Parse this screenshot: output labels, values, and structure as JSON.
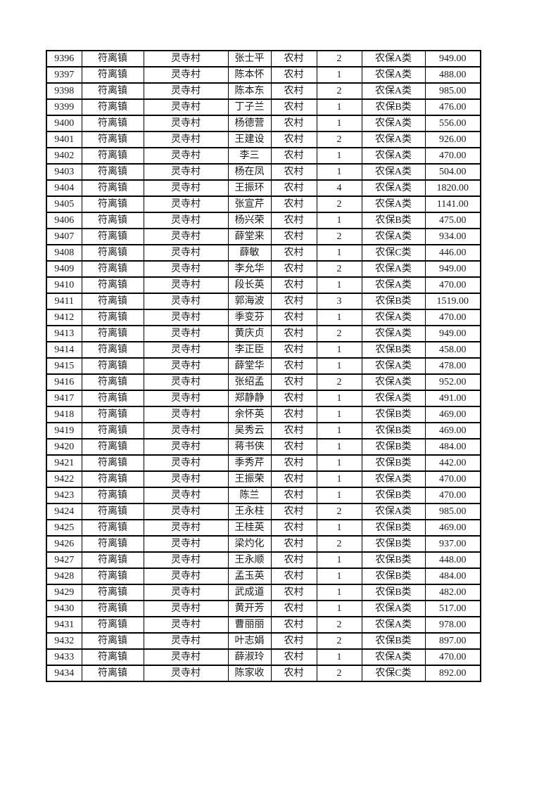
{
  "page": {
    "background_color": "#ffffff",
    "text_color": "#1a1a1a",
    "border_color": "#000000"
  },
  "table": {
    "columns": [
      {
        "key": "id"
      },
      {
        "key": "town"
      },
      {
        "key": "village"
      },
      {
        "key": "name"
      },
      {
        "key": "type"
      },
      {
        "key": "count"
      },
      {
        "key": "category"
      },
      {
        "key": "amount"
      }
    ],
    "rows": [
      [
        "9396",
        "符离镇",
        "灵寺村",
        "张士平",
        "农村",
        "2",
        "农保A类",
        "949.00"
      ],
      [
        "9397",
        "符离镇",
        "灵寺村",
        "陈本怀",
        "农村",
        "1",
        "农保A类",
        "488.00"
      ],
      [
        "9398",
        "符离镇",
        "灵寺村",
        "陈本东",
        "农村",
        "2",
        "农保A类",
        "985.00"
      ],
      [
        "9399",
        "符离镇",
        "灵寺村",
        "丁子兰",
        "农村",
        "1",
        "农保B类",
        "476.00"
      ],
      [
        "9400",
        "符离镇",
        "灵寺村",
        "杨德营",
        "农村",
        "1",
        "农保A类",
        "556.00"
      ],
      [
        "9401",
        "符离镇",
        "灵寺村",
        "王建设",
        "农村",
        "2",
        "农保A类",
        "926.00"
      ],
      [
        "9402",
        "符离镇",
        "灵寺村",
        "李三",
        "农村",
        "1",
        "农保A类",
        "470.00"
      ],
      [
        "9403",
        "符离镇",
        "灵寺村",
        "杨在凤",
        "农村",
        "1",
        "农保A类",
        "504.00"
      ],
      [
        "9404",
        "符离镇",
        "灵寺村",
        "王振环",
        "农村",
        "4",
        "农保A类",
        "1820.00"
      ],
      [
        "9405",
        "符离镇",
        "灵寺村",
        "张宣芹",
        "农村",
        "2",
        "农保A类",
        "1141.00"
      ],
      [
        "9406",
        "符离镇",
        "灵寺村",
        "杨兴荣",
        "农村",
        "1",
        "农保B类",
        "475.00"
      ],
      [
        "9407",
        "符离镇",
        "灵寺村",
        "薛堂来",
        "农村",
        "2",
        "农保A类",
        "934.00"
      ],
      [
        "9408",
        "符离镇",
        "灵寺村",
        "薛敏",
        "农村",
        "1",
        "农保C类",
        "446.00"
      ],
      [
        "9409",
        "符离镇",
        "灵寺村",
        "李允华",
        "农村",
        "2",
        "农保A类",
        "949.00"
      ],
      [
        "9410",
        "符离镇",
        "灵寺村",
        "段长英",
        "农村",
        "1",
        "农保A类",
        "470.00"
      ],
      [
        "9411",
        "符离镇",
        "灵寺村",
        "郭海波",
        "农村",
        "3",
        "农保B类",
        "1519.00"
      ],
      [
        "9412",
        "符离镇",
        "灵寺村",
        "季变芬",
        "农村",
        "1",
        "农保A类",
        "470.00"
      ],
      [
        "9413",
        "符离镇",
        "灵寺村",
        "黄庆贞",
        "农村",
        "2",
        "农保A类",
        "949.00"
      ],
      [
        "9414",
        "符离镇",
        "灵寺村",
        "李正臣",
        "农村",
        "1",
        "农保B类",
        "458.00"
      ],
      [
        "9415",
        "符离镇",
        "灵寺村",
        "薛堂华",
        "农村",
        "1",
        "农保A类",
        "478.00"
      ],
      [
        "9416",
        "符离镇",
        "灵寺村",
        "张绍孟",
        "农村",
        "2",
        "农保A类",
        "952.00"
      ],
      [
        "9417",
        "符离镇",
        "灵寺村",
        "郑静静",
        "农村",
        "1",
        "农保A类",
        "491.00"
      ],
      [
        "9418",
        "符离镇",
        "灵寺村",
        "余怀英",
        "农村",
        "1",
        "农保B类",
        "469.00"
      ],
      [
        "9419",
        "符离镇",
        "灵寺村",
        "吴秀云",
        "农村",
        "1",
        "农保B类",
        "469.00"
      ],
      [
        "9420",
        "符离镇",
        "灵寺村",
        "蒋书侠",
        "农村",
        "1",
        "农保B类",
        "484.00"
      ],
      [
        "9421",
        "符离镇",
        "灵寺村",
        "季秀芹",
        "农村",
        "1",
        "农保B类",
        "442.00"
      ],
      [
        "9422",
        "符离镇",
        "灵寺村",
        "王振荣",
        "农村",
        "1",
        "农保A类",
        "470.00"
      ],
      [
        "9423",
        "符离镇",
        "灵寺村",
        "陈兰",
        "农村",
        "1",
        "农保B类",
        "470.00"
      ],
      [
        "9424",
        "符离镇",
        "灵寺村",
        "王永柱",
        "农村",
        "2",
        "农保A类",
        "985.00"
      ],
      [
        "9425",
        "符离镇",
        "灵寺村",
        "王桂英",
        "农村",
        "1",
        "农保B类",
        "469.00"
      ],
      [
        "9426",
        "符离镇",
        "灵寺村",
        "梁灼化",
        "农村",
        "2",
        "农保B类",
        "937.00"
      ],
      [
        "9427",
        "符离镇",
        "灵寺村",
        "王永顺",
        "农村",
        "1",
        "农保B类",
        "448.00"
      ],
      [
        "9428",
        "符离镇",
        "灵寺村",
        "孟玉英",
        "农村",
        "1",
        "农保B类",
        "484.00"
      ],
      [
        "9429",
        "符离镇",
        "灵寺村",
        "武成道",
        "农村",
        "1",
        "农保B类",
        "482.00"
      ],
      [
        "9430",
        "符离镇",
        "灵寺村",
        "黄开芳",
        "农村",
        "1",
        "农保A类",
        "517.00"
      ],
      [
        "9431",
        "符离镇",
        "灵寺村",
        "曹丽丽",
        "农村",
        "2",
        "农保A类",
        "978.00"
      ],
      [
        "9432",
        "符离镇",
        "灵寺村",
        "叶志娟",
        "农村",
        "2",
        "农保B类",
        "897.00"
      ],
      [
        "9433",
        "符离镇",
        "灵寺村",
        "薛淑玲",
        "农村",
        "1",
        "农保A类",
        "470.00"
      ],
      [
        "9434",
        "符离镇",
        "灵寺村",
        "陈家收",
        "农村",
        "2",
        "农保C类",
        "892.00"
      ]
    ]
  }
}
